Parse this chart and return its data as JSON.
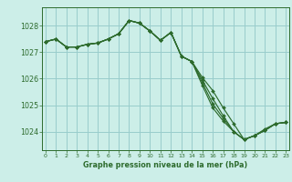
{
  "title": "Graphe pression niveau de la mer (hPa)",
  "background_color": "#cceee8",
  "grid_color": "#99cccc",
  "line_color": "#2d6b2d",
  "x_ticks": [
    0,
    1,
    2,
    3,
    4,
    5,
    6,
    7,
    8,
    9,
    10,
    11,
    12,
    13,
    14,
    15,
    16,
    17,
    18,
    19,
    20,
    21,
    22,
    23
  ],
  "y_ticks": [
    1024,
    1025,
    1026,
    1027,
    1028
  ],
  "ylim": [
    1023.3,
    1028.7
  ],
  "xlim": [
    -0.3,
    23.3
  ],
  "series": [
    {
      "y": [
        1027.4,
        1027.5,
        1027.2,
        1027.2,
        1027.3,
        1027.35,
        1027.5,
        1027.7,
        1028.2,
        1028.1,
        1027.8,
        1027.45,
        1027.75,
        1026.85,
        1026.65,
        1026.05,
        1025.55,
        1024.9,
        1024.3,
        1023.7,
        1023.85,
        1024.05,
        1024.3,
        1024.35
      ]
    },
    {
      "y": [
        1027.4,
        1027.5,
        1027.2,
        1027.2,
        1027.3,
        1027.35,
        1027.5,
        1027.7,
        1028.2,
        1028.1,
        1027.8,
        1027.45,
        1027.75,
        1026.85,
        1026.65,
        1025.95,
        1025.25,
        1024.6,
        1024.0,
        1023.7,
        1023.85,
        1024.1,
        1024.3,
        1024.35
      ]
    },
    {
      "y": [
        1027.4,
        1027.5,
        1027.2,
        1027.2,
        1027.3,
        1027.35,
        1027.5,
        1027.7,
        1028.2,
        1028.1,
        1027.8,
        1027.45,
        1027.75,
        1026.85,
        1026.65,
        1025.85,
        1025.05,
        1024.5,
        1024.0,
        1023.7,
        1023.85,
        1024.05,
        1024.3,
        1024.35
      ]
    },
    {
      "y": [
        1027.4,
        1027.5,
        1027.2,
        1027.2,
        1027.3,
        1027.35,
        1027.5,
        1027.7,
        1028.2,
        1028.1,
        1027.8,
        1027.45,
        1027.75,
        1026.85,
        1026.65,
        1025.75,
        1024.9,
        1024.4,
        1024.0,
        1023.7,
        1023.85,
        1024.05,
        1024.3,
        1024.35
      ]
    }
  ]
}
